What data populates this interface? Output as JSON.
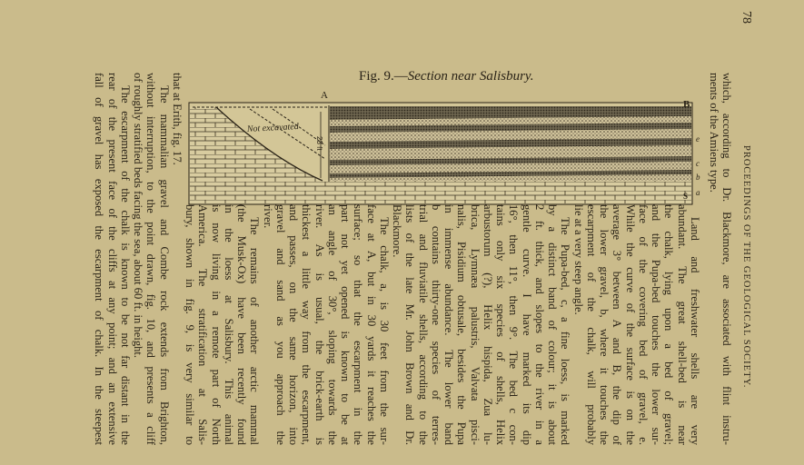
{
  "header": {
    "page_number": "78",
    "running_title": "PROCEEDINGS OF THE GEOLOGICAL SOCIETY."
  },
  "intro_lines": [
    "which, according to Dr. Blackmore, are associated with flint instru-",
    "ments of the Amiens type."
  ],
  "column_lines": [
    "Land and freshwater shells are very",
    "abundant.  The great shell-bed is near",
    "the chalk, lying upon a bed of gravel;",
    "and the Pupa-bed touches the lower sur-",
    "face of the covering bed of gravel, e.",
    "While the curve of the surface is on the",
    "average 3° between A and B, the dip of",
    "the lower gravel, b, where it touches the",
    "escarpment of the chalk, will probably",
    "lie at a very steep angle.",
    "The Pupa-bed, c, a fine loess, is marked",
    "by a distinct band of colour; it is about",
    "2 ft. thick, and slopes to the river in a",
    "gentle curve.   I have marked its dip",
    "16°, then 11°, then 9°.  The bed c con-",
    "tains only six species of shells, Helix",
    "arbustorum (?), Helix hispida, Zua lu-",
    "brica, Lymnæa palustris, Valvata pisci-",
    "nalis, Pisidium obtusale, besides the Pupa",
    "in immense abundance.  The lower band",
    "b contains thirty-one species of terres-",
    "trial and fluviatile shells, according to the",
    "lists of the late Mr. John Brown and Dr.",
    "Blackmore.",
    "The chalk, a, is 30 feet from the sur-",
    "face at A, but in 30 yards it reaches the",
    "surface; so that the escarpment in the",
    "part not yet opened is known to be at",
    "an angle of 30°, sloping towards the",
    "river.  As is usual, the brick-earth is",
    "thickest a little way from the escarpment,",
    "and passes, on the same horizon, into",
    "gravel and sand as you approach the",
    "river.",
    "The remains of another arctic mammal",
    "(the Musk-Ox) have been recently found",
    "in the loess at Salisbury.  This animal",
    "is now living in a remote part of North",
    "America.  The stratification at Salis-",
    "bury, shown in fig. 9, is very similar to"
  ],
  "full_lines": [
    "that at Erith, fig. 17.",
    "The mammalian gravel and Combe rock extends from Brighton,",
    "without interruption, to the point drawn, fig. 10, and presents a cliff",
    "of roughly stratified beds facing the sea, about 60 ft. in height.",
    "The escarpment of the chalk is known to be not far distant in the",
    "rear of the present face of the cliffs at any point; and an extensive",
    "fall of gravel has exposed the escarpment of chalk.  In the steepest"
  ],
  "figure": {
    "caption_prefix": "Fig. 9.—",
    "caption_title": "Section near Salisbury.",
    "label_a_point": "A",
    "label_b_point": "B",
    "not_excavated": "Not excavated",
    "height_label": "23 ft",
    "bed_labels": [
      "e",
      "c",
      "b",
      "a"
    ],
    "chalk_mark": "S"
  },
  "colors": {
    "paper": "#cabb8b",
    "ink": "#2a2317"
  }
}
